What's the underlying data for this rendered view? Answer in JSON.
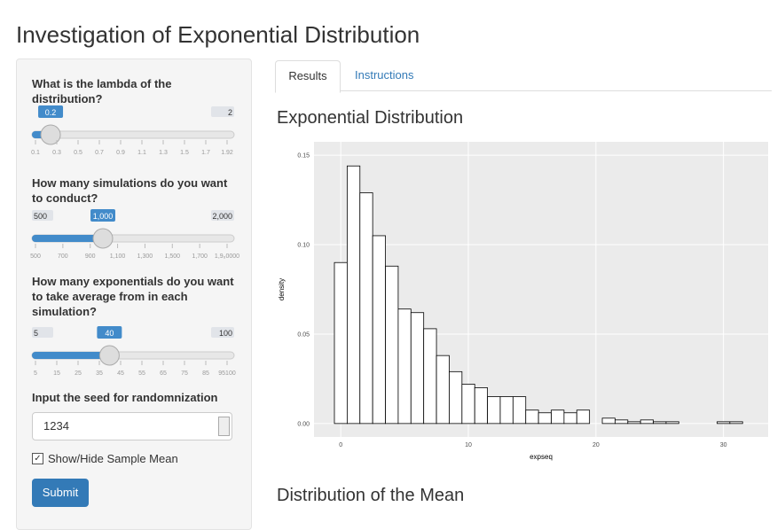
{
  "header": {
    "title": "Investigation of Exponential Distribution"
  },
  "sidebar": {
    "lambda": {
      "label": "What is the lambda of the distribution?",
      "min": 0.1,
      "max": 2,
      "value": 0.2,
      "grid": [
        "0.1",
        "0.3",
        "0.5",
        "0.7",
        "0.9",
        "1.1",
        "1.3",
        "1.5",
        "1.7",
        "1.92"
      ]
    },
    "simulations": {
      "label": "How many simulations do you want to conduct?",
      "min": 500,
      "max": {
        "value": 2000,
        "label": "2,000"
      },
      "value": {
        "value": 1000,
        "label": "1,000"
      },
      "grid": [
        "500",
        "700",
        "900",
        "1,100",
        "1,300",
        "1,500",
        "1,700",
        "1,9₆0000"
      ]
    },
    "exponentials": {
      "label": "How many exponentials do you want to take average from in each simulation?",
      "min": 5,
      "max": 100,
      "value": 40,
      "grid": [
        "5",
        "15",
        "25",
        "35",
        "45",
        "55",
        "65",
        "75",
        "85",
        "95100"
      ]
    },
    "seed": {
      "label": "Input the seed for randomnization",
      "value": "1234"
    },
    "checkbox": {
      "label": "Show/Hide Sample Mean"
    },
    "submit": {
      "label": "Submit"
    }
  },
  "tabs": [
    "Results",
    "Instructions"
  ],
  "sections": [
    "Exponential Distribution",
    "Distribution of the Mean"
  ],
  "chart_data": {
    "type": "histogram",
    "x_label": "expseq",
    "y_label": "density",
    "bins": [
      -0.5,
      0.5,
      1.5,
      2.5,
      3.5,
      4.5,
      5.5,
      6.5,
      7.5,
      8.5,
      9.5,
      10.5,
      11.5,
      12.5,
      13.5,
      14.5,
      15.5,
      16.5,
      17.5,
      18.5,
      19.5,
      20.5,
      21.5,
      22.5,
      23.5,
      24.5,
      25.5,
      26.5,
      27.5,
      28.5,
      29.5,
      30.5,
      31.5
    ],
    "values": [
      0.09,
      0.144,
      0.129,
      0.105,
      0.088,
      0.064,
      0.062,
      0.053,
      0.038,
      0.029,
      0.022,
      0.02,
      0.015,
      0.015,
      0.015,
      0.0075,
      0.006,
      0.0075,
      0.006,
      0.0075,
      0,
      0.003,
      0.002,
      0.001,
      0.002,
      0.001,
      0.001,
      0,
      0,
      0,
      0.001,
      0.001
    ],
    "color": "#ffffff",
    "edgecolor": "#000000",
    "background": "#ebebeb",
    "grid": true,
    "xlim": [
      -2.1,
      33.5
    ],
    "ylim": [
      -0.0075,
      0.1575
    ],
    "xticks": [
      0,
      10,
      20,
      30
    ],
    "yticks": [
      {
        "value": 0,
        "label": "0.00"
      },
      0.05,
      {
        "value": 0.1,
        "label": "0.10"
      },
      0.15
    ]
  }
}
